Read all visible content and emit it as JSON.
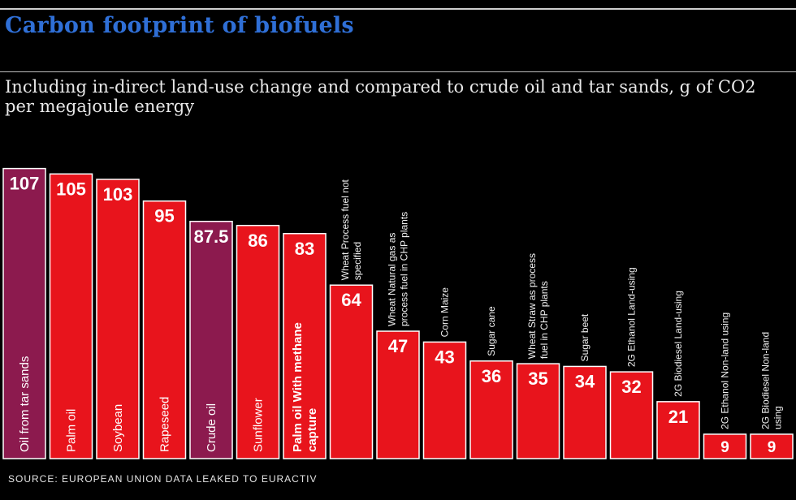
{
  "header": {
    "title": "Carbon footprint of biofuels",
    "subtitle": "Including in-direct land-use change and compared to crude oil and tar sands, g of CO2 per megajoule energy"
  },
  "footer": {
    "source": "Source: European Union data leaked to Euractiv"
  },
  "colors": {
    "biofuel": "#e8141c",
    "fossil": "#8c1a4e",
    "bar_border": "#ffffff",
    "title": "#2f6fd6"
  },
  "chart_data": {
    "type": "bar",
    "title": "Carbon footprint of biofuels",
    "subtitle": "Including in-direct land-use change and compared to crude oil and tar sands, g of CO2 per megajoule energy",
    "xlabel": "",
    "ylabel": "g of CO2 per megajoule energy",
    "ylim": [
      0,
      110
    ],
    "grid": false,
    "legend": "none",
    "categories": [
      "Oil from tar sands",
      "Palm oil",
      "Soybean",
      "Rapeseed",
      "Crude oil",
      "Sunflower",
      "Palm oil With methane capture",
      "Wheat Process fuel not specified",
      "Wheat Natural gas as process fuel in CHP plants",
      "Corn Maize",
      "Sugar cane",
      "Wheat Straw as process fuel in CHP plants",
      "Sugar beet",
      "2G Ethanol Land-using",
      "2G Biodiesel Land-using",
      "2G Ethanol Non-land using",
      "2G Biodiesel Non-land using"
    ],
    "values": [
      107,
      105,
      103,
      95,
      87.5,
      86,
      83,
      64,
      47,
      43,
      36,
      35,
      34,
      32,
      21,
      9,
      9
    ],
    "value_labels": [
      "107",
      "105",
      "103",
      "95",
      "87.5",
      "86",
      "83",
      "64",
      "47",
      "43",
      "36",
      "35",
      "34",
      "32",
      "21",
      "9",
      "9"
    ],
    "kinds": [
      "fossil",
      "biofuel",
      "biofuel",
      "biofuel",
      "fossil",
      "biofuel",
      "biofuel",
      "biofuel",
      "biofuel",
      "biofuel",
      "biofuel",
      "biofuel",
      "biofuel",
      "biofuel",
      "biofuel",
      "biofuel",
      "biofuel"
    ],
    "label_placement": [
      "inside",
      "inside",
      "inside",
      "inside",
      "inside",
      "inside",
      "inside",
      "above",
      "above",
      "above",
      "above",
      "above",
      "above",
      "above",
      "above",
      "above",
      "above"
    ]
  }
}
